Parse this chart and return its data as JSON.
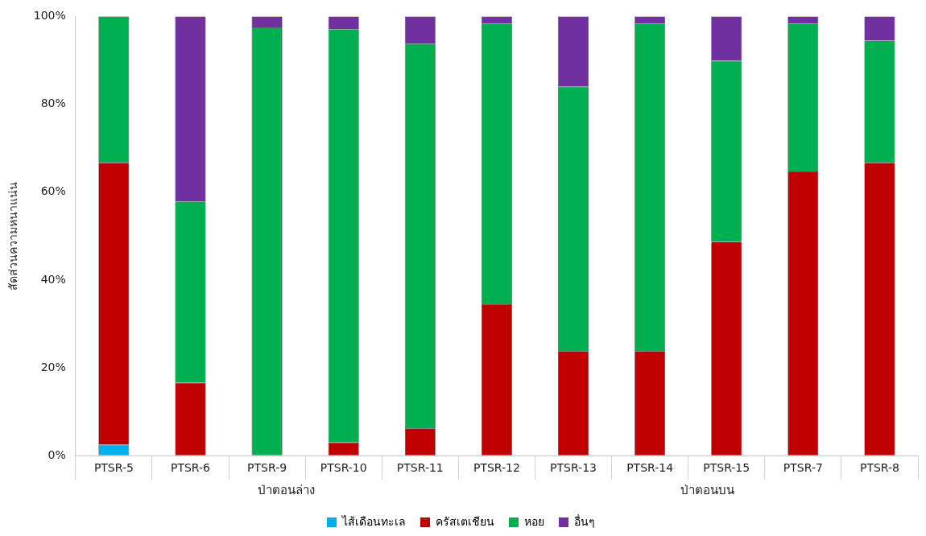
{
  "chart_data": {
    "type": "bar",
    "stacked": true,
    "ylabel": "สัดส่วนความหนาแน่น",
    "categories": [
      "PTSR-5",
      "PTSR-6",
      "PTSR-9",
      "PTSR-10",
      "PTSR-11",
      "PTSR-12",
      "PTSR-13",
      "PTSR-14",
      "PTSR-15",
      "PTSR-7",
      "PTSR-8"
    ],
    "series": [
      {
        "name": "ไส้เดือนทะเล",
        "color": "#00b0f0",
        "values": [
          2.5,
          0,
          0,
          0,
          0,
          0,
          0,
          0,
          0,
          0,
          0
        ]
      },
      {
        "name": "ครัสเตเชียน",
        "color": "#c00000",
        "values": [
          64.2,
          16.6,
          0,
          3,
          6.2,
          34.5,
          23.8,
          23.8,
          48.7,
          64.7,
          66.7
        ]
      },
      {
        "name": "หอย",
        "color": "#00b050",
        "values": [
          33.3,
          41.3,
          97.5,
          94.1,
          87.6,
          63.9,
          60.2,
          74.6,
          41.2,
          33.7,
          27.8
        ]
      },
      {
        "name": "อื่นๆ",
        "color": "#7030a0",
        "values": [
          0,
          42.1,
          2.5,
          2.9,
          6.2,
          1.6,
          16,
          1.6,
          10.1,
          1.6,
          5.5
        ]
      }
    ],
    "ylim": [
      0,
      100
    ],
    "yticks": [
      {
        "value": 0,
        "label": "0%"
      },
      {
        "value": 20,
        "label": "20%"
      },
      {
        "value": 40,
        "label": "40%"
      },
      {
        "value": 60,
        "label": "60%"
      },
      {
        "value": 80,
        "label": "80%"
      },
      {
        "value": 100,
        "label": "100%"
      }
    ],
    "annotations": [
      "ป่าตอนล่าง",
      "ป่าตอนบน"
    ],
    "grid": false,
    "legend": "bottom"
  }
}
